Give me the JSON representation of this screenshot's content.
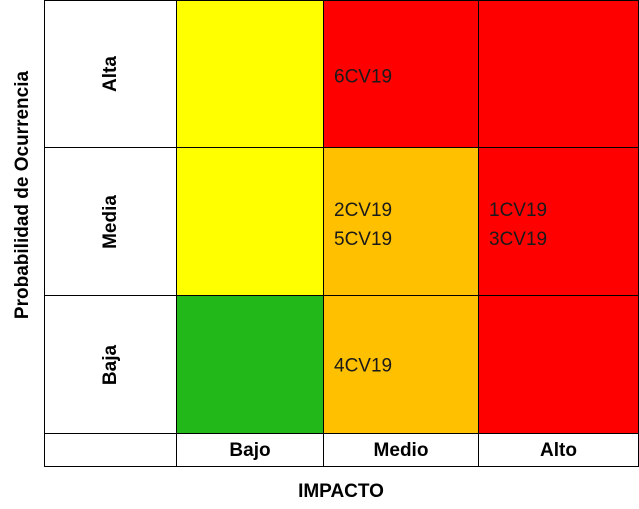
{
  "axis_titles": {
    "y": "Probabilidad de Ocurrencia",
    "x": "IMPACTO"
  },
  "probability_levels": [
    "Alta",
    "Media",
    "Baja"
  ],
  "impact_levels": [
    "Bajo",
    "Medio",
    "Alto"
  ],
  "colors": {
    "green": "#22b81a",
    "yellow": "#ffff00",
    "orange": "#ffc000",
    "red": "#ff0000",
    "white": "#ffffff"
  },
  "cells": [
    {
      "probability": "Alta",
      "impact": "Bajo",
      "color": "#ffff00",
      "risks": []
    },
    {
      "probability": "Alta",
      "impact": "Medio",
      "color": "#ff0000",
      "risks": [
        "6CV19"
      ]
    },
    {
      "probability": "Alta",
      "impact": "Alto",
      "color": "#ff0000",
      "risks": []
    },
    {
      "probability": "Media",
      "impact": "Bajo",
      "color": "#ffff00",
      "risks": []
    },
    {
      "probability": "Media",
      "impact": "Medio",
      "color": "#ffc000",
      "risks": [
        "2CV19",
        "5CV19"
      ]
    },
    {
      "probability": "Media",
      "impact": "Alto",
      "color": "#ff0000",
      "risks": [
        "1CV19",
        "3CV19"
      ]
    },
    {
      "probability": "Baja",
      "impact": "Bajo",
      "color": "#22b81a",
      "risks": []
    },
    {
      "probability": "Baja",
      "impact": "Medio",
      "color": "#ffc000",
      "risks": [
        "4CV19"
      ]
    },
    {
      "probability": "Baja",
      "impact": "Alto",
      "color": "#ff0000",
      "risks": []
    }
  ]
}
